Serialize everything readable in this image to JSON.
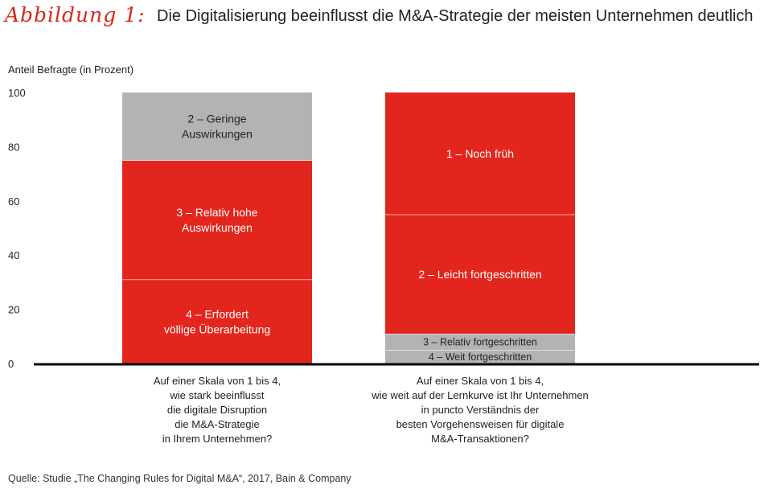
{
  "header": {
    "figure_label": "Abbildung 1:",
    "title": "Die Digitalisierung beeinflusst die M&A-Strategie der meisten Unternehmen deutlich"
  },
  "footer": {
    "source": "Quelle: Studie „The Changing Rules for Digital M&A“, 2017, Bain & Company"
  },
  "colors": {
    "red": "#e3261d",
    "gray": "#b3b3b3",
    "axis": "#000000",
    "accent": "#d9261c"
  },
  "chart_data": {
    "type": "bar",
    "stacked": true,
    "ylabel": "Anteil Befragte (in Prozent)",
    "ylim": [
      0,
      100
    ],
    "yticks": [
      0,
      20,
      40,
      60,
      80,
      100
    ],
    "grid": false,
    "bars": [
      {
        "category_lines": [
          "Auf einer Skala von 1 bis 4,",
          "wie stark beeinflusst",
          "die digitale Disruption",
          "die M&A-Strategie",
          "in Ihrem Unternehmen?"
        ],
        "segments": [
          {
            "label_lines": [
              "4 – Erfordert",
              "völlige Überarbeitung"
            ],
            "value": 31,
            "color": "red"
          },
          {
            "label_lines": [
              "3 – Relativ hohe",
              "Auswirkungen"
            ],
            "value": 44,
            "color": "red"
          },
          {
            "label_lines": [
              "2 – Geringe",
              "Auswirkungen"
            ],
            "value": 25,
            "color": "gray"
          }
        ]
      },
      {
        "category_lines": [
          "Auf einer Skala von 1 bis 4,",
          "wie weit auf der Lernkurve ist Ihr Unternehmen",
          "in puncto Verständnis der",
          "besten Vorgehensweisen für digitale",
          "M&A-Transaktionen?"
        ],
        "segments": [
          {
            "label_lines": [
              "4 – Weit fortgeschritten"
            ],
            "value": 5,
            "color": "gray"
          },
          {
            "label_lines": [
              "3 – Relativ fortgeschritten"
            ],
            "value": 6,
            "color": "gray"
          },
          {
            "label_lines": [
              "2 – Leicht fortgeschritten"
            ],
            "value": 44,
            "color": "red"
          },
          {
            "label_lines": [
              "1 – Noch früh"
            ],
            "value": 45,
            "color": "red"
          }
        ]
      }
    ]
  }
}
